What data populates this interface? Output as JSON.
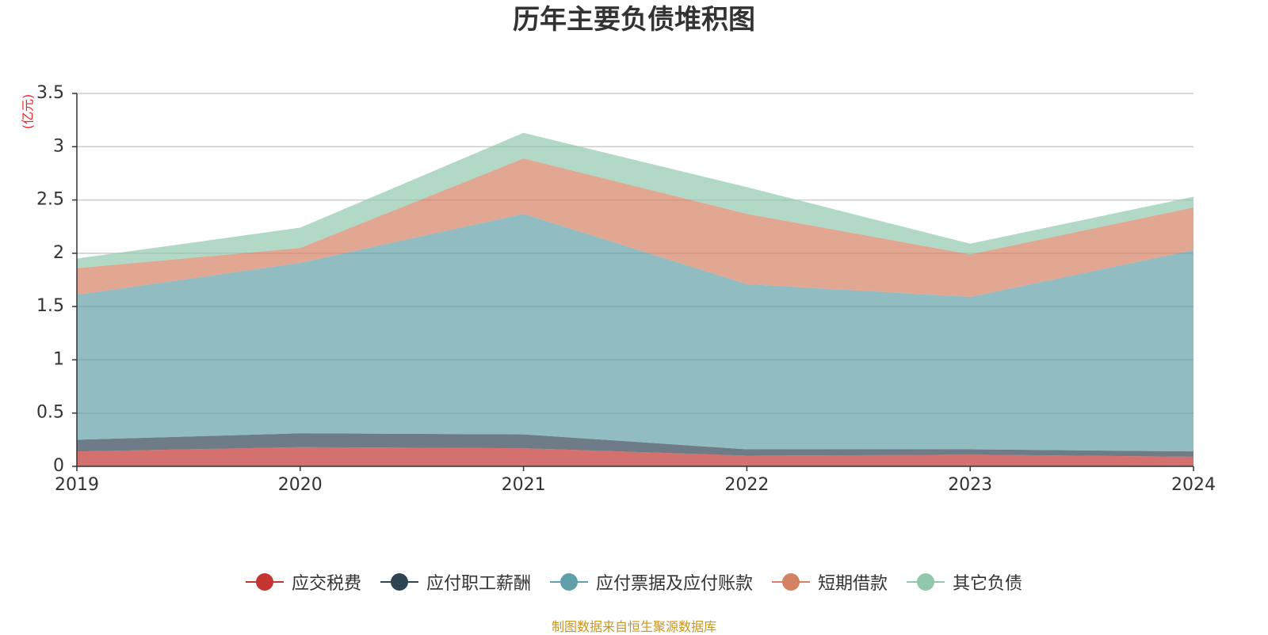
{
  "chart_data": {
    "type": "area",
    "title": "历年主要负债堆积图",
    "ylabel": "(亿元)",
    "xlabel": "",
    "categories": [
      "2019",
      "2020",
      "2021",
      "2022",
      "2023",
      "2024"
    ],
    "ylim": [
      0,
      3.5
    ],
    "yticks": [
      "0",
      "0.5",
      "1",
      "1.5",
      "2",
      "2.5",
      "3",
      "3.5"
    ],
    "stacked": true,
    "grid": true,
    "legend_position": "bottom",
    "series": [
      {
        "name": "应交税费",
        "color": "#c23531",
        "values": [
          0.14,
          0.18,
          0.17,
          0.1,
          0.11,
          0.09
        ]
      },
      {
        "name": "应付职工薪酬",
        "color": "#2f4554",
        "values": [
          0.11,
          0.13,
          0.13,
          0.06,
          0.05,
          0.05
        ]
      },
      {
        "name": "应付票据及应付账款",
        "color": "#61a0a8",
        "values": [
          1.36,
          1.6,
          2.07,
          1.55,
          1.43,
          1.89
        ]
      },
      {
        "name": "短期借款",
        "color": "#d48265",
        "values": [
          0.25,
          0.14,
          0.52,
          0.66,
          0.4,
          0.4
        ]
      },
      {
        "name": "其它负债",
        "color": "#91c7ae",
        "values": [
          0.09,
          0.19,
          0.24,
          0.25,
          0.1,
          0.1
        ]
      }
    ]
  },
  "footer": {
    "source": "制图数据来自恒生聚源数据库"
  }
}
